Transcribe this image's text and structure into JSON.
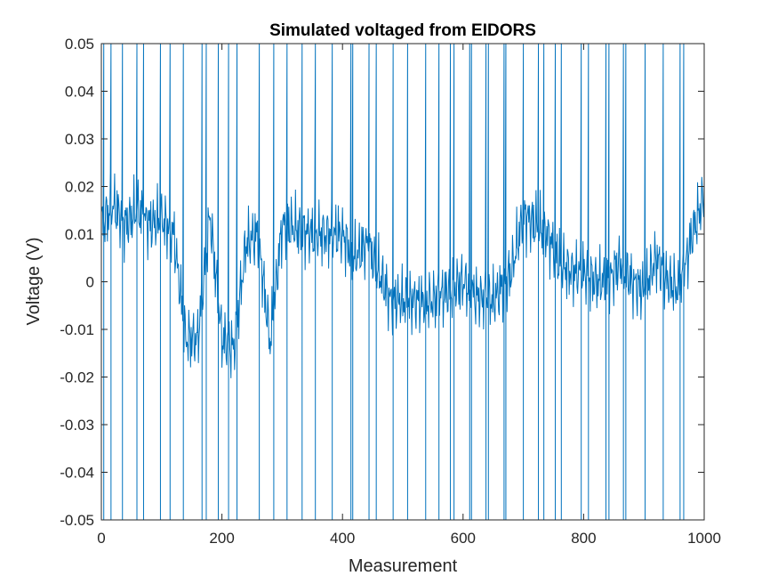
{
  "chart_data": {
    "type": "line",
    "title": "Simulated voltaged from EIDORS",
    "xlabel": "Measurement",
    "ylabel": "Voltage (V)",
    "xlim": [
      0,
      1000
    ],
    "ylim": [
      -0.05,
      0.05
    ],
    "xticks": [
      0,
      200,
      400,
      600,
      800,
      1000
    ],
    "yticks": [
      -0.05,
      -0.04,
      -0.03,
      -0.02,
      -0.01,
      0,
      0.01,
      0.02,
      0.03,
      0.04,
      0.05
    ],
    "xtick_labels": [
      "0",
      "200",
      "400",
      "600",
      "800",
      "1000"
    ],
    "ytick_labels": [
      "-0.05",
      "-0.04",
      "-0.03",
      "-0.02",
      "-0.01",
      "0",
      "0.01",
      "0.02",
      "0.03",
      "0.04",
      "0.05"
    ],
    "grid": false,
    "line_color": "#0072BD",
    "series": [
      {
        "point_count": 1000,
        "baseline": [
          [
            0,
            0.012
          ],
          [
            20,
            0.016
          ],
          [
            40,
            0.012
          ],
          [
            60,
            0.015
          ],
          [
            80,
            0.012
          ],
          [
            100,
            0.013
          ],
          [
            120,
            0.01
          ],
          [
            140,
            -0.012
          ],
          [
            160,
            -0.012
          ],
          [
            180,
            0.014
          ],
          [
            200,
            -0.012
          ],
          [
            220,
            -0.014
          ],
          [
            240,
            0.008
          ],
          [
            260,
            0.01
          ],
          [
            280,
            -0.013
          ],
          [
            300,
            0.012
          ],
          [
            350,
            0.01
          ],
          [
            400,
            0.01
          ],
          [
            420,
            0.005
          ],
          [
            440,
            0.008
          ],
          [
            460,
            0.002
          ],
          [
            480,
            -0.004
          ],
          [
            500,
            -0.004
          ],
          [
            550,
            -0.004
          ],
          [
            600,
            0.0
          ],
          [
            620,
            -0.003
          ],
          [
            650,
            -0.004
          ],
          [
            680,
            0.002
          ],
          [
            700,
            0.014
          ],
          [
            720,
            0.012
          ],
          [
            740,
            0.01
          ],
          [
            760,
            0.004
          ],
          [
            780,
            0.002
          ],
          [
            800,
            0.002
          ],
          [
            820,
            0.0
          ],
          [
            840,
            0.0
          ],
          [
            860,
            0.004
          ],
          [
            880,
            0.0
          ],
          [
            900,
            -0.002
          ],
          [
            920,
            0.005
          ],
          [
            940,
            0.0
          ],
          [
            960,
            -0.002
          ],
          [
            980,
            0.01
          ],
          [
            1000,
            0.018
          ]
        ],
        "oscillation_amplitude": 0.006,
        "spike_indices": [
          4,
          16,
          35,
          59,
          70,
          98,
          114,
          136,
          167,
          174,
          194,
          211,
          225,
          262,
          286,
          308,
          333,
          355,
          383,
          414,
          417,
          444,
          456,
          484,
          508,
          538,
          560,
          579,
          585,
          611,
          614,
          638,
          642,
          668,
          671,
          700,
          725,
          734,
          753,
          763,
          796,
          808,
          837,
          842,
          866,
          870,
          902,
          932,
          960,
          966
        ],
        "spike_range": [
          -0.05,
          0.05
        ]
      }
    ]
  }
}
